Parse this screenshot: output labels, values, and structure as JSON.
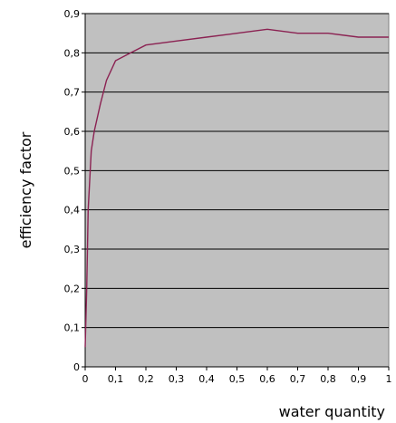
{
  "chart_data": {
    "type": "line",
    "title": "",
    "xlabel": "water quantity",
    "ylabel": "efficiency factor",
    "xlim": [
      0,
      1
    ],
    "ylim": [
      0,
      0.9
    ],
    "x_ticks": [
      "0",
      "0,1",
      "0,2",
      "0,3",
      "0,4",
      "0,5",
      "0,6",
      "0,7",
      "0,8",
      "0,9",
      "1"
    ],
    "y_ticks": [
      "0",
      "0,1",
      "0,2",
      "0,3",
      "0,4",
      "0,5",
      "0,6",
      "0,7",
      "0,8",
      "0,9"
    ],
    "grid": "horizontal",
    "legend": "none",
    "colors": {
      "plot_background": "#c0c0c0",
      "line": "#8b2252",
      "grid": "#000000"
    },
    "series": [
      {
        "x": [
          0,
          0.005,
          0.01,
          0.02,
          0.03,
          0.05,
          0.07,
          0.1,
          0.15,
          0.2,
          0.3,
          0.4,
          0.5,
          0.6,
          0.7,
          0.8,
          0.9,
          1.0
        ],
        "y": [
          0.05,
          0.2,
          0.4,
          0.55,
          0.6,
          0.67,
          0.73,
          0.78,
          0.8,
          0.82,
          0.83,
          0.84,
          0.85,
          0.86,
          0.85,
          0.85,
          0.84,
          0.84
        ]
      }
    ]
  }
}
